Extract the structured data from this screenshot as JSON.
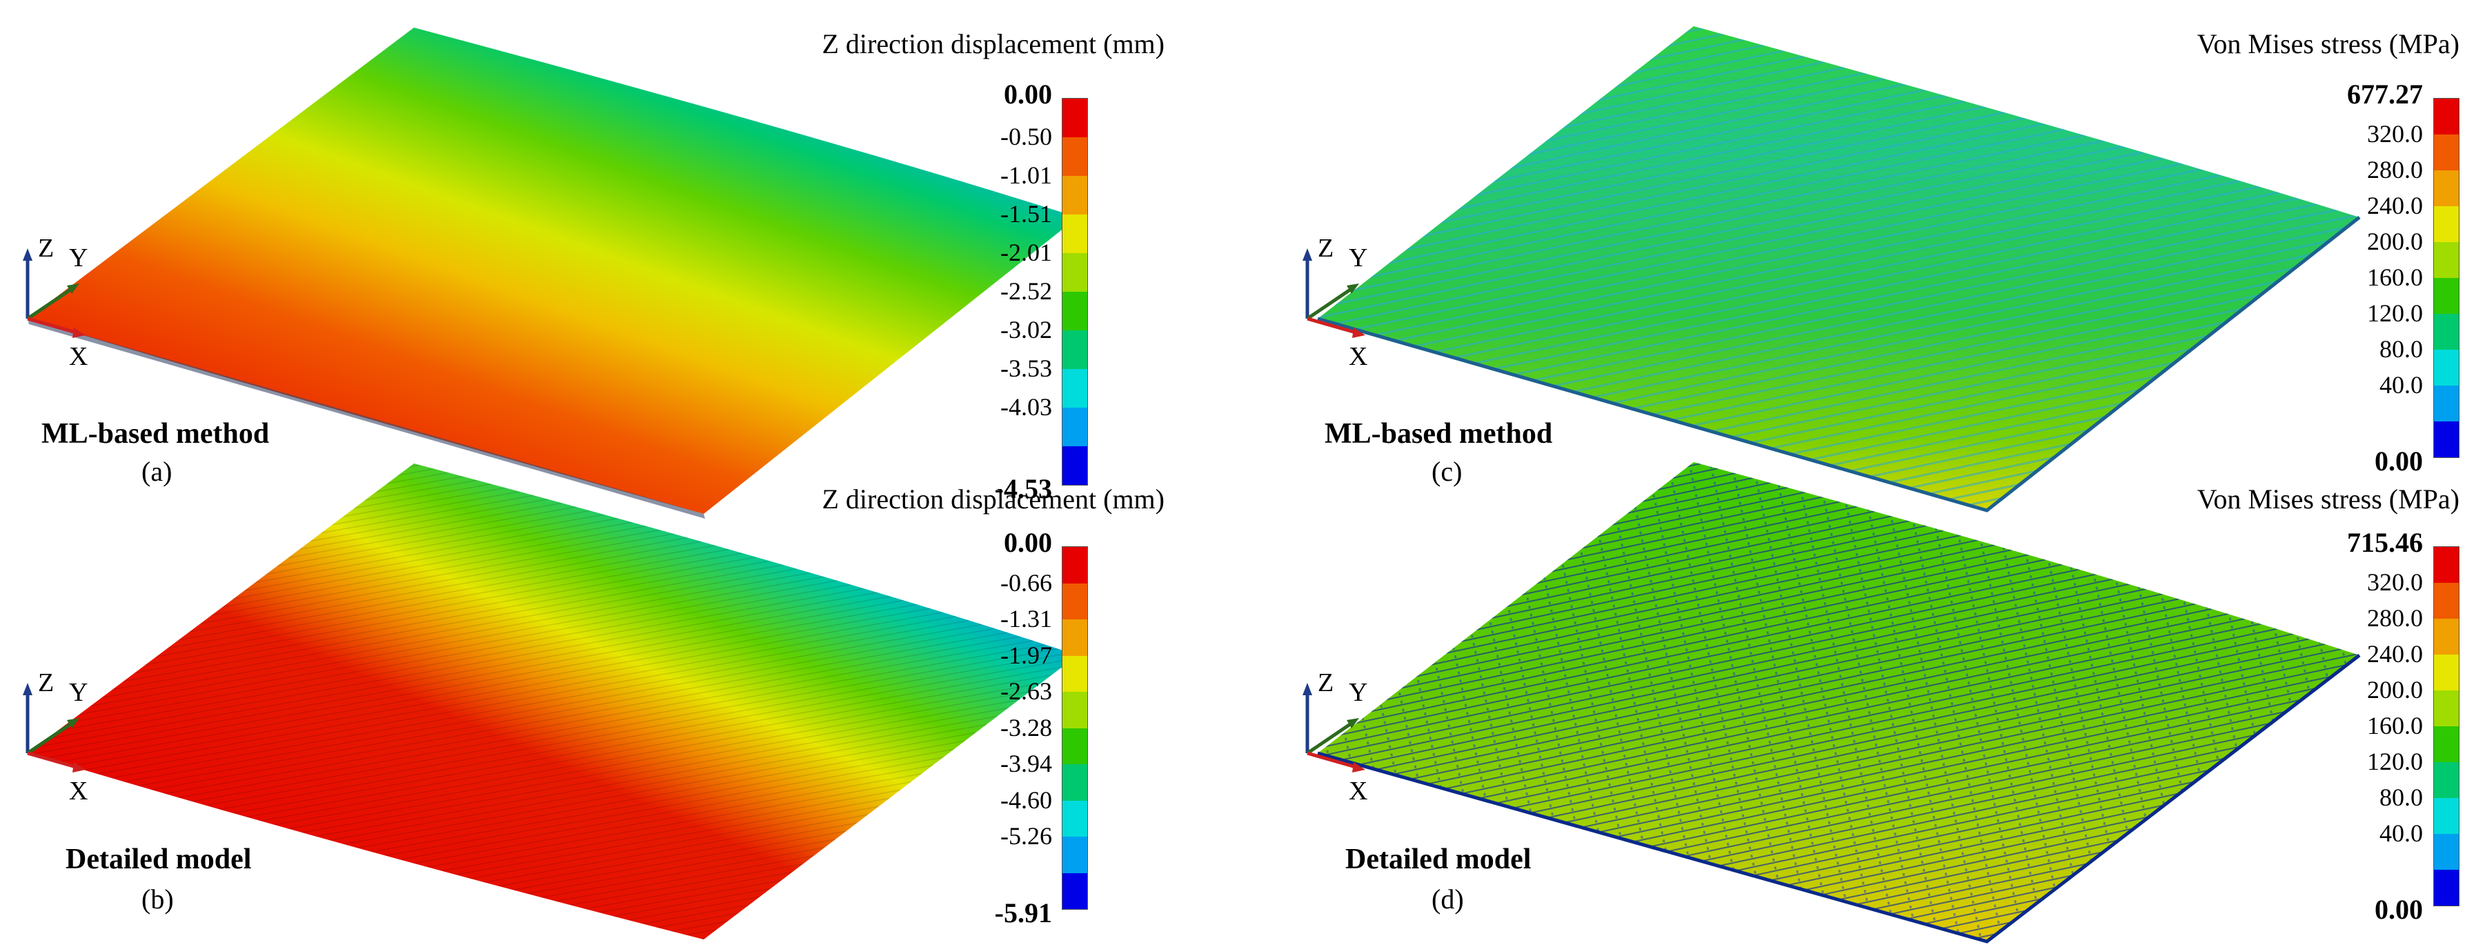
{
  "panels": [
    {
      "id": "a",
      "letter": "(a)",
      "method": "ML-based method",
      "legend_title": "Z direction displacement (mm)",
      "max_label": "0.00",
      "min_label": "-4.53",
      "tick_labels": [
        "-0.50",
        "-1.01",
        "-1.51",
        "-2.01",
        "-2.52",
        "-3.02",
        "-3.53",
        "-4.03"
      ],
      "axes": {
        "z": "Z",
        "y": "Y",
        "x": "X"
      }
    },
    {
      "id": "b",
      "letter": "(b)",
      "method": "Detailed model",
      "legend_title": "Z direction displacement (mm)",
      "max_label": "0.00",
      "min_label": "-5.91",
      "tick_labels": [
        "-0.66",
        "-1.31",
        "-1.97",
        "-2.63",
        "-3.28",
        "-3.94",
        "-4.60",
        "-5.26"
      ],
      "axes": {
        "z": "Z",
        "y": "Y",
        "x": "X"
      }
    },
    {
      "id": "c",
      "letter": "(c)",
      "method": "ML-based method",
      "legend_title": "Von Mises stress (MPa)",
      "max_label": "677.27",
      "min_label": "0.00",
      "tick_labels": [
        "320.0",
        "280.0",
        "240.0",
        "200.0",
        "160.0",
        "120.0",
        "80.0",
        "40.0"
      ],
      "axes": {
        "z": "Z",
        "y": "Y",
        "x": "X"
      }
    },
    {
      "id": "d",
      "letter": "(d)",
      "method": "Detailed model",
      "legend_title": "Von Mises stress (MPa)",
      "max_label": "715.46",
      "min_label": "0.00",
      "tick_labels": [
        "320.0",
        "280.0",
        "240.0",
        "200.0",
        "160.0",
        "120.0",
        "80.0",
        "40.0"
      ],
      "axes": {
        "z": "Z",
        "y": "Y",
        "x": "X"
      }
    }
  ],
  "colors": {
    "scale": [
      "#e60000",
      "#f05a00",
      "#f0a000",
      "#e6e600",
      "#a0dc00",
      "#2ec800",
      "#00c86e",
      "#00dcdc",
      "#00a0f0",
      "#0000e6"
    ],
    "axis_z": "#1f3c88",
    "axis_y": "#2d6a1e",
    "axis_x": "#d02020"
  }
}
